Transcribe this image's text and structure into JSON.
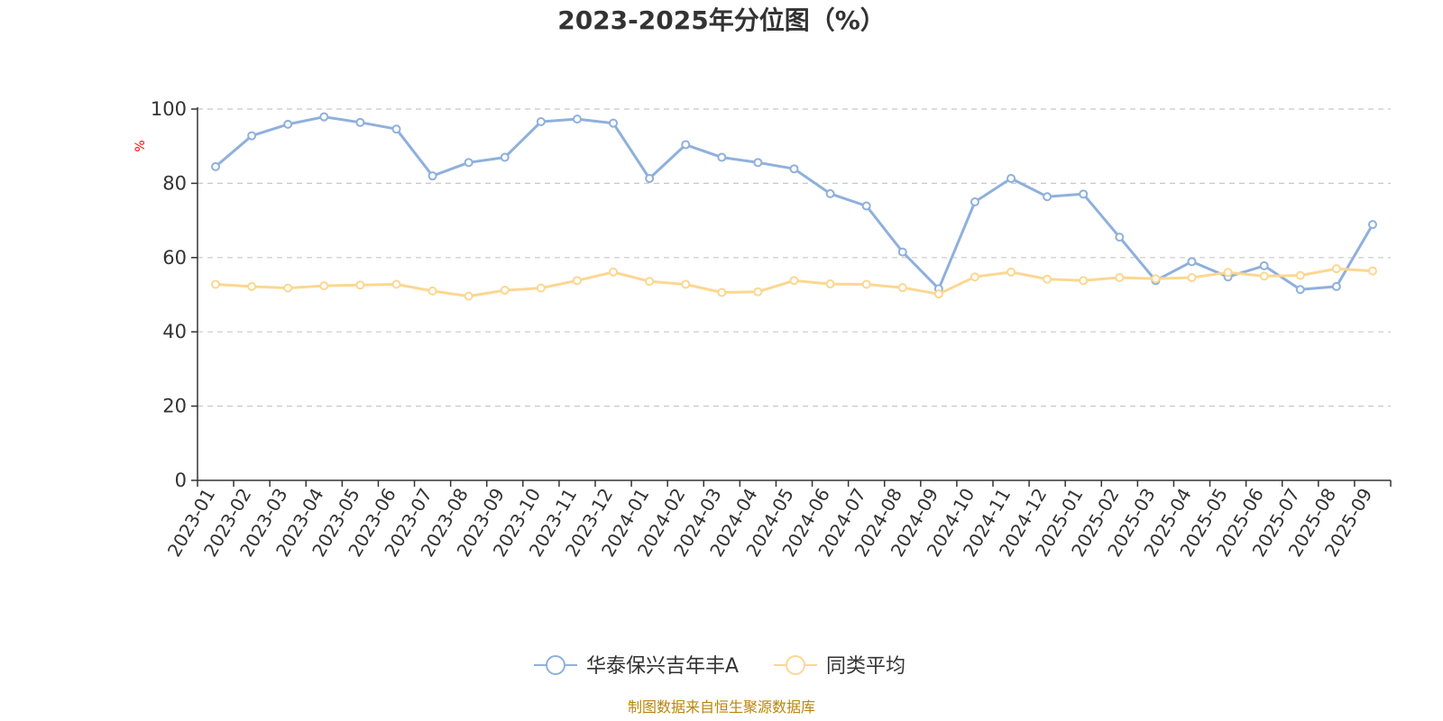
{
  "chart_data": {
    "type": "line",
    "title": "2023-2025年分位图（%）",
    "ylabel": "%",
    "xlabel": "",
    "ylim": [
      0,
      100
    ],
    "yticks": [
      0,
      20,
      40,
      60,
      80,
      100
    ],
    "grid": true,
    "legend_position": "bottom",
    "categories": [
      "2023-01",
      "2023-02",
      "2023-03",
      "2023-04",
      "2023-05",
      "2023-06",
      "2023-07",
      "2023-08",
      "2023-09",
      "2023-10",
      "2023-11",
      "2023-12",
      "2024-01",
      "2024-02",
      "2024-03",
      "2024-04",
      "2024-05",
      "2024-06",
      "2024-07",
      "2024-08",
      "2024-09",
      "2024-10",
      "2024-11",
      "2024-12",
      "2025-01",
      "2025-02",
      "2025-03",
      "2025-04",
      "2025-05",
      "2025-06",
      "2025-07",
      "2025-08",
      "2025-09"
    ],
    "series": [
      {
        "name": "华泰保兴吉年丰A",
        "color": "#8fb0dc",
        "values": [
          84.5,
          92.8,
          95.9,
          97.9,
          96.4,
          94.6,
          82.0,
          85.6,
          87.0,
          96.6,
          97.3,
          96.2,
          81.3,
          90.4,
          87.0,
          85.6,
          83.9,
          77.2,
          73.9,
          61.5,
          51.6,
          75.0,
          81.3,
          76.4,
          77.1,
          65.5,
          53.8,
          58.9,
          54.8,
          57.8,
          51.4,
          52.2,
          68.9
        ]
      },
      {
        "name": "同类平均",
        "color": "#fcd791",
        "values": [
          52.8,
          52.2,
          51.8,
          52.4,
          52.6,
          52.8,
          51.0,
          49.6,
          51.2,
          51.8,
          53.8,
          56.1,
          53.6,
          52.8,
          50.6,
          50.8,
          53.8,
          52.9,
          52.8,
          51.9,
          50.2,
          54.8,
          56.1,
          54.2,
          53.8,
          54.6,
          54.3,
          54.6,
          56.0,
          55.0,
          55.2,
          57.0,
          56.4
        ]
      }
    ],
    "source": "制图数据来自恒生聚源数据库"
  }
}
